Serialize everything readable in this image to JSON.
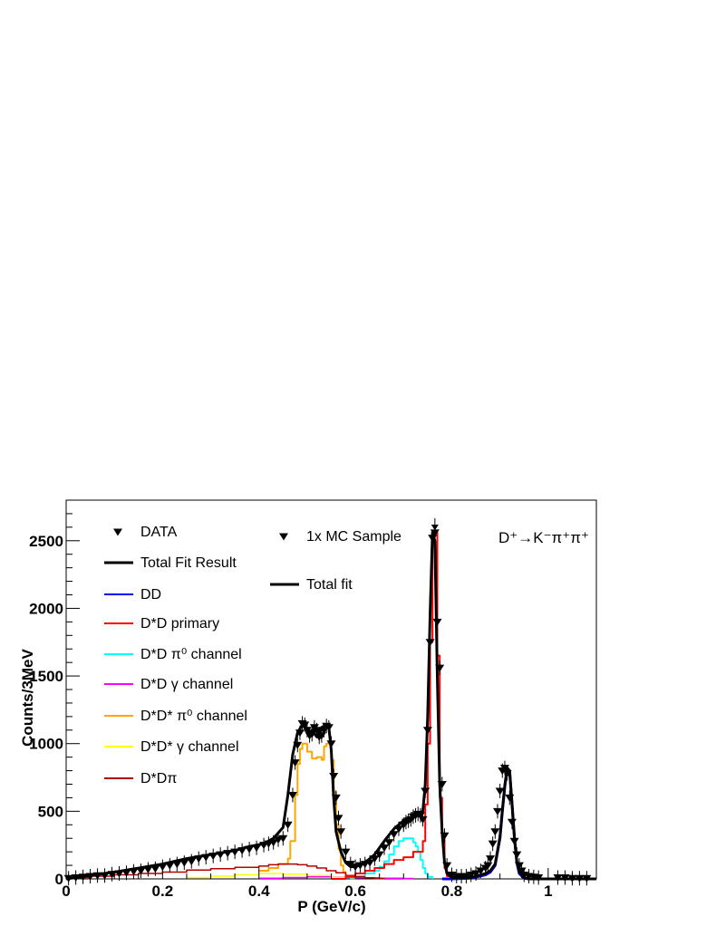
{
  "chart_data": {
    "type": "line",
    "xlabel": "P (GeV/c)",
    "ylabel": "Counts/3MeV",
    "xlim": [
      0,
      1.1
    ],
    "ylim": [
      0,
      2800
    ],
    "x_ticks": [
      0,
      0.2,
      0.4,
      0.6,
      0.8,
      1
    ],
    "x_tick_labels": [
      "0",
      "0.2",
      "0.4",
      "0.6",
      "0.8",
      "1"
    ],
    "y_ticks": [
      0,
      500,
      1000,
      1500,
      2000,
      2500
    ],
    "y_tick_labels": [
      "0",
      "500",
      "1000",
      "1500",
      "2000",
      "2500"
    ],
    "grid": false,
    "annotation": "D⁺→K⁻π⁺π⁺",
    "legend_left": [
      {
        "label": "DATA",
        "color": "#000000",
        "style": "marker"
      },
      {
        "label": "Total Fit Result",
        "color": "#000000",
        "style": "line"
      },
      {
        "label": "DD",
        "color": "#0000ff",
        "style": "line"
      },
      {
        "label": "D*D primary",
        "color": "#ff0000",
        "style": "line"
      },
      {
        "label": "D*D π⁰ channel",
        "color": "#00ffff",
        "style": "line"
      },
      {
        "label": "D*D γ channel",
        "color": "#ff00ff",
        "style": "line"
      },
      {
        "label": "D*D* π⁰ channel",
        "color": "#ffa500",
        "style": "line"
      },
      {
        "label": "D*D* γ channel",
        "color": "#ffff00",
        "style": "line"
      },
      {
        "label": "D*Dπ",
        "color": "#b30000",
        "style": "line"
      }
    ],
    "legend_right": [
      {
        "label": "1x MC Sample",
        "color": "#000000",
        "style": "marker"
      },
      {
        "label": "Total fit",
        "color": "#000000",
        "style": "line"
      }
    ],
    "series": [
      {
        "key": "dstardstar_pi0",
        "color": "#ffa500",
        "width": 2,
        "step": true,
        "x": [
          0.4,
          0.42,
          0.44,
          0.46,
          0.465,
          0.475,
          0.48,
          0.485,
          0.49,
          0.495,
          0.5,
          0.51,
          0.52,
          0.53,
          0.535,
          0.54,
          0.545,
          0.55,
          0.555,
          0.56,
          0.565,
          0.57,
          0.575,
          0.58,
          0.59,
          0.6
        ],
        "y": [
          60,
          80,
          110,
          150,
          280,
          620,
          850,
          960,
          1000,
          1000,
          940,
          890,
          900,
          880,
          980,
          1000,
          1000,
          880,
          640,
          400,
          220,
          100,
          50,
          20,
          5,
          0
        ]
      },
      {
        "key": "dstard_pi0",
        "color": "#00ffff",
        "width": 2,
        "step": true,
        "x": [
          0.55,
          0.6,
          0.62,
          0.64,
          0.65,
          0.66,
          0.67,
          0.68,
          0.69,
          0.7,
          0.71,
          0.72,
          0.725,
          0.73,
          0.735,
          0.74,
          0.745,
          0.75,
          0.76
        ],
        "y": [
          10,
          20,
          40,
          60,
          90,
          130,
          180,
          240,
          280,
          300,
          300,
          270,
          240,
          200,
          140,
          80,
          40,
          15,
          0
        ]
      },
      {
        "key": "dstard_gamma",
        "color": "#ff00ff",
        "width": 1.5,
        "step": true,
        "x": [
          0.4,
          0.45,
          0.5,
          0.55,
          0.6,
          0.65,
          0.7,
          0.72
        ],
        "y": [
          5,
          10,
          15,
          12,
          8,
          5,
          3,
          0
        ]
      },
      {
        "key": "dstardstar_gamma",
        "color": "#ffff00",
        "width": 1.5,
        "step": true,
        "x": [
          0.25,
          0.3,
          0.35,
          0.4,
          0.45,
          0.5,
          0.55,
          0.58
        ],
        "y": [
          10,
          20,
          30,
          40,
          35,
          25,
          10,
          0
        ]
      },
      {
        "key": "dstar_d_pi",
        "color": "#b30000",
        "width": 1.5,
        "step": true,
        "x": [
          0.0,
          0.05,
          0.1,
          0.15,
          0.2,
          0.25,
          0.3,
          0.35,
          0.4,
          0.42,
          0.44,
          0.46,
          0.48,
          0.5,
          0.52,
          0.54,
          0.56,
          0.58,
          0.6,
          0.62,
          0.64,
          0.66
        ],
        "y": [
          10,
          20,
          30,
          40,
          50,
          65,
          75,
          85,
          95,
          105,
          110,
          110,
          105,
          95,
          80,
          60,
          45,
          25,
          15,
          8,
          3,
          0
        ]
      },
      {
        "key": "dstard_primary",
        "color": "#ff0000",
        "width": 2,
        "step": true,
        "x": [
          0.55,
          0.58,
          0.6,
          0.62,
          0.64,
          0.66,
          0.68,
          0.7,
          0.72,
          0.74,
          0.745,
          0.75,
          0.755,
          0.76,
          0.765,
          0.77,
          0.775,
          0.78,
          0.785,
          0.79,
          0.8,
          0.82
        ],
        "y": [
          0,
          20,
          40,
          60,
          80,
          110,
          140,
          160,
          200,
          280,
          550,
          1000,
          1750,
          2550,
          2560,
          1650,
          600,
          300,
          80,
          20,
          5,
          0
        ]
      },
      {
        "key": "dd",
        "color": "#0000ff",
        "width": 3,
        "step": false,
        "x": [
          0.78,
          0.8,
          0.84,
          0.87,
          0.88,
          0.89,
          0.9,
          0.905,
          0.91,
          0.915,
          0.92,
          0.925,
          0.93,
          0.935,
          0.94,
          0.95,
          0.96
        ],
        "y": [
          0,
          0,
          5,
          30,
          50,
          100,
          300,
          500,
          680,
          820,
          800,
          550,
          300,
          120,
          40,
          5,
          0
        ]
      },
      {
        "key": "total_fit",
        "color": "#000000",
        "width": 3,
        "step": false,
        "x": [
          0.0,
          0.03,
          0.06,
          0.1,
          0.15,
          0.2,
          0.25,
          0.3,
          0.35,
          0.38,
          0.41,
          0.43,
          0.45,
          0.46,
          0.47,
          0.48,
          0.49,
          0.5,
          0.505,
          0.51,
          0.52,
          0.525,
          0.53,
          0.54,
          0.545,
          0.55,
          0.555,
          0.56,
          0.57,
          0.58,
          0.59,
          0.6,
          0.62,
          0.64,
          0.66,
          0.68,
          0.7,
          0.72,
          0.74,
          0.745,
          0.75,
          0.755,
          0.76,
          0.765,
          0.77,
          0.775,
          0.78,
          0.785,
          0.79,
          0.8,
          0.82,
          0.84,
          0.87,
          0.88,
          0.89,
          0.9,
          0.905,
          0.91,
          0.915,
          0.92,
          0.925,
          0.93,
          0.935,
          0.94,
          0.95,
          0.96,
          1.0,
          1.1
        ],
        "y": [
          0,
          15,
          30,
          50,
          80,
          110,
          150,
          180,
          210,
          240,
          260,
          300,
          380,
          620,
          920,
          1080,
          1140,
          1110,
          1080,
          1100,
          1050,
          1080,
          1120,
          1140,
          1120,
          950,
          600,
          350,
          200,
          120,
          90,
          90,
          120,
          180,
          280,
          370,
          430,
          460,
          500,
          700,
          1200,
          1950,
          2560,
          2500,
          1500,
          700,
          350,
          120,
          40,
          10,
          10,
          10,
          40,
          60,
          110,
          310,
          510,
          690,
          820,
          800,
          560,
          310,
          130,
          50,
          10,
          0,
          0,
          0
        ]
      }
    ],
    "data_points": {
      "x": [
        0.005,
        0.02,
        0.035,
        0.05,
        0.065,
        0.08,
        0.095,
        0.11,
        0.125,
        0.14,
        0.155,
        0.17,
        0.185,
        0.2,
        0.215,
        0.23,
        0.245,
        0.26,
        0.275,
        0.29,
        0.305,
        0.32,
        0.335,
        0.35,
        0.365,
        0.38,
        0.395,
        0.41,
        0.42,
        0.43,
        0.44,
        0.45,
        0.46,
        0.47,
        0.475,
        0.48,
        0.485,
        0.49,
        0.495,
        0.5,
        0.505,
        0.51,
        0.515,
        0.52,
        0.525,
        0.53,
        0.535,
        0.54,
        0.545,
        0.55,
        0.555,
        0.56,
        0.565,
        0.57,
        0.58,
        0.59,
        0.6,
        0.61,
        0.62,
        0.63,
        0.64,
        0.65,
        0.66,
        0.67,
        0.68,
        0.69,
        0.7,
        0.705,
        0.71,
        0.715,
        0.72,
        0.725,
        0.73,
        0.735,
        0.74,
        0.745,
        0.75,
        0.755,
        0.76,
        0.765,
        0.77,
        0.775,
        0.78,
        0.785,
        0.79,
        0.8,
        0.81,
        0.82,
        0.83,
        0.84,
        0.85,
        0.86,
        0.87,
        0.875,
        0.88,
        0.885,
        0.89,
        0.895,
        0.9,
        0.905,
        0.91,
        0.915,
        0.92,
        0.925,
        0.93,
        0.935,
        0.94,
        0.945,
        0.95,
        0.96,
        0.97,
        0.98,
        1.02,
        1.035,
        1.05,
        1.065,
        1.08
      ],
      "y": [
        5,
        10,
        15,
        20,
        25,
        25,
        35,
        40,
        45,
        55,
        60,
        70,
        75,
        90,
        100,
        110,
        120,
        130,
        150,
        160,
        170,
        180,
        190,
        200,
        210,
        220,
        230,
        250,
        260,
        270,
        290,
        300,
        400,
        620,
        860,
        990,
        1080,
        1150,
        1140,
        1100,
        1060,
        1070,
        1120,
        1100,
        1050,
        1060,
        1100,
        1130,
        1120,
        1000,
        760,
        600,
        450,
        350,
        200,
        110,
        90,
        100,
        110,
        120,
        150,
        180,
        230,
        270,
        330,
        370,
        400,
        420,
        430,
        440,
        460,
        470,
        480,
        470,
        440,
        650,
        1100,
        1750,
        2520,
        2560,
        1900,
        1560,
        700,
        320,
        100,
        30,
        20,
        20,
        20,
        30,
        40,
        60,
        80,
        100,
        150,
        260,
        350,
        500,
        650,
        800,
        820,
        780,
        600,
        420,
        280,
        180,
        100,
        60,
        30,
        20,
        15,
        10,
        10,
        10,
        5,
        5,
        5
      ]
    },
    "mc_points": {
      "x": [
        0.765
      ],
      "y": [
        2600
      ]
    }
  }
}
